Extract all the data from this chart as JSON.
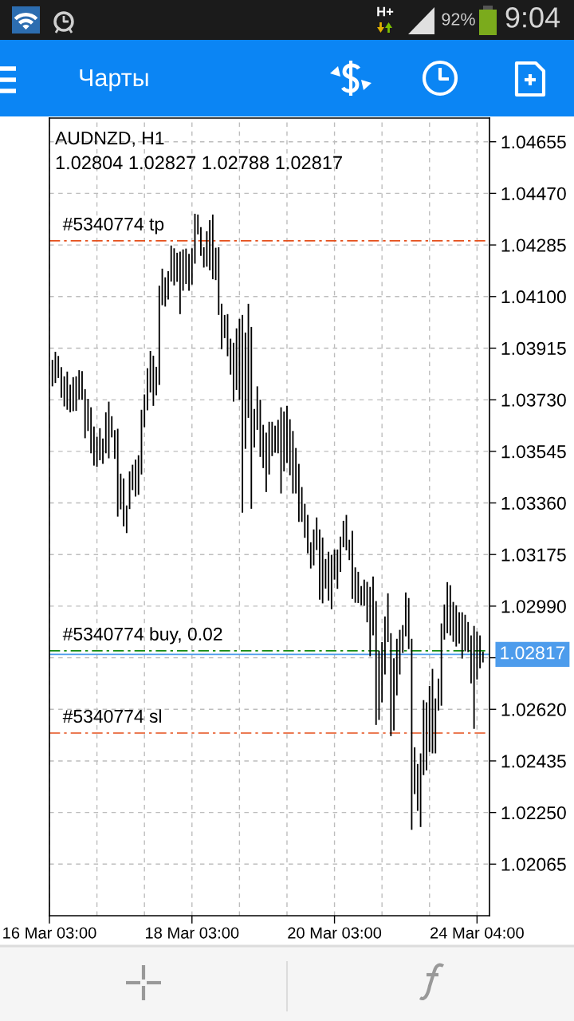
{
  "chart_data": {
    "type": "bar",
    "title": "AUDNZD, H1",
    "subtitle": "1.02804 1.02827 1.02788 1.02817",
    "annotations": [
      "Чарты",
      "H+",
      "92%",
      "9:04"
    ],
    "categories": [
      "16 Mar 03:00",
      null,
      null,
      null,
      null,
      null,
      null,
      null,
      null,
      null,
      null,
      null,
      null,
      null,
      null,
      null,
      null,
      null,
      null,
      null,
      null,
      null,
      null,
      null,
      null,
      null,
      null,
      null,
      null,
      null,
      null,
      null,
      null,
      null,
      null,
      null,
      null,
      null,
      null,
      null,
      null,
      null,
      null,
      null,
      null,
      null,
      null,
      null,
      "18 Mar 03:00",
      null,
      null,
      null,
      null,
      null,
      null,
      null,
      null,
      null,
      null,
      null,
      null,
      null,
      null,
      null,
      null,
      null,
      null,
      null,
      null,
      null,
      null,
      null,
      null,
      null,
      null,
      null,
      null,
      null,
      null,
      null,
      null,
      null,
      null,
      null,
      null,
      null,
      null,
      null,
      null,
      null,
      null,
      null,
      null,
      null,
      null,
      null,
      "20 Mar 03:00",
      null,
      null,
      null,
      null,
      null,
      null,
      null,
      null,
      null,
      null,
      null,
      null,
      null,
      null,
      null,
      null,
      null,
      null,
      null,
      null,
      null,
      null,
      null,
      null,
      null,
      null,
      null,
      null,
      null,
      null,
      null,
      null,
      null,
      null,
      null,
      null,
      null,
      null,
      null,
      null,
      null,
      null,
      null,
      null,
      null,
      null,
      null,
      "24 Mar 04:00",
      null,
      null
    ],
    "base": [
      null,
      1.03778,
      1.0379,
      1.03808,
      1.03737,
      1.03706,
      1.03694,
      1.03685,
      1.03689,
      1.0369,
      1.03731,
      1.0373,
      1.03592,
      1.03618,
      1.03538,
      1.03494,
      1.03489,
      1.03513,
      1.035,
      1.03538,
      1.0352,
      1.03595,
      1.03518,
      1.03311,
      1.03337,
      1.03276,
      1.03252,
      1.03338,
      1.03406,
      1.03383,
      1.03389,
      1.03462,
      1.03632,
      1.03692,
      1.03756,
      1.03708,
      1.03746,
      1.03783,
      1.04069,
      1.04064,
      1.04089,
      1.04154,
      1.0414,
      1.04153,
      1.04037,
      1.04121,
      1.04145,
      1.04121,
      1.04143,
      1.04218,
      1.04323,
      1.04246,
      1.04204,
      1.04207,
      1.04194,
      1.04162,
      1.04159,
      1.04034,
      1.03911,
      1.03951,
      1.03886,
      1.0382,
      1.03723,
      1.03765,
      1.0373,
      1.03325,
      1.03554,
      1.03665,
      1.03339,
      1.03559,
      1.03622,
      1.03525,
      1.03485,
      1.03399,
      1.03462,
      1.03528,
      1.0354,
      1.03538,
      1.03394,
      1.03473,
      1.03504,
      1.03459,
      1.03394,
      1.03394,
      1.03292,
      1.03292,
      1.03235,
      1.03179,
      1.03125,
      1.03136,
      1.03191,
      1.03013,
      1.03,
      1.03053,
      1.0301,
      1.02979,
      1.03085,
      1.03052,
      1.03113,
      1.03201,
      1.0319,
      1.03155,
      1.03016,
      1.03002,
      1.03001,
      1.02993,
      1.02991,
      1.02932,
      1.0281,
      1.02885,
      1.02564,
      1.02582,
      1.02645,
      1.02745,
      1.02861,
      1.02524,
      1.02544,
      1.0267,
      1.02745,
      1.02822,
      1.02882,
      1.02836,
      1.02188,
      1.02316,
      1.02256,
      1.02198,
      1.02384,
      1.02401,
      1.02467,
      1.02462,
      1.02462,
      1.02616,
      1.02633,
      1.0287,
      1.02893,
      1.02885,
      1.02862,
      1.02845,
      1.02856,
      1.02802,
      1.02828,
      1.02825,
      1.02713,
      1.0255,
      1.02727,
      1.02767,
      1.02788
    ],
    "values": [
      null,
      0.00095,
      0.00112,
      0.00079,
      0.0011,
      0.00108,
      0.00137,
      0.00099,
      0.00122,
      0.00124,
      0.00105,
      0.00103,
      0.00176,
      0.00115,
      0.00165,
      0.0014,
      0.00108,
      0.00115,
      0.00091,
      0.00147,
      0.00203,
      0.00076,
      0.00103,
      0.00315,
      0.00128,
      0.00172,
      0.00099,
      0.00135,
      0.00091,
      0.00132,
      0.00142,
      0.00232,
      0.00117,
      0.00151,
      0.00149,
      0.0018,
      0.00102,
      0.00356,
      0.00131,
      0.00105,
      0.00102,
      0.00129,
      0.00133,
      0.00104,
      0.00224,
      0.00148,
      0.00127,
      0.00132,
      0.0013,
      0.00179,
      0.00071,
      0.00103,
      0.00073,
      0.00127,
      0.0018,
      0.00232,
      0.00116,
      0.00243,
      0.00163,
      0.00083,
      0.00151,
      0.00129,
      0.00211,
      0.00221,
      0.0029,
      0.00709,
      0.00417,
      0.00409,
      0.00652,
      0.00138,
      0.00156,
      0.00205,
      0.00155,
      0.00213,
      0.00189,
      0.00123,
      0.00097,
      0.0012,
      0.00309,
      0.00215,
      0.00204,
      0.00201,
      0.00224,
      0.00163,
      0.00208,
      0.00125,
      0.00122,
      0.00138,
      0.00094,
      0.00129,
      0.00117,
      0.00252,
      0.00236,
      0.00106,
      0.00175,
      0.00195,
      0.00108,
      0.00141,
      0.00126,
      0.00095,
      0.00127,
      0.00073,
      0.00244,
      0.00127,
      0.00112,
      0.00069,
      0.00094,
      0.00145,
      0.00249,
      0.00211,
      0.00444,
      0.00248,
      0.00216,
      0.00208,
      0.00175,
      0.00369,
      0.00259,
      0.00203,
      0.0016,
      0.001,
      0.00157,
      0.00183,
      0.00685,
      0.00168,
      0.00168,
      0.00264,
      0.00269,
      0.00244,
      0.00237,
      0.00303,
      0.00197,
      0.00114,
      0.00295,
      0.00126,
      0.00183,
      0.0018,
      0.00143,
      0.00148,
      0.00112,
      0.00166,
      0.00131,
      0.00108,
      0.00172,
      0.00369,
      0.00172,
      0.00118,
      0.00039
    ],
    "color": "#000000",
    "ylim": [
      1.0188,
      1.0474
    ],
    "yticks": [
      1.02065,
      {
        "value": 1.0225,
        "label": "1.02250"
      },
      1.02435,
      {
        "value": 1.0262,
        "label": "1.02620"
      },
      {
        "value": 1.02805,
        "label": null
      },
      {
        "value": 1.0299,
        "label": "1.02990"
      },
      1.03175,
      {
        "value": 1.0336,
        "label": "1.03360"
      },
      1.03545,
      {
        "value": 1.0373,
        "label": "1.03730"
      },
      1.03915,
      {
        "value": 1.041,
        "label": "1.04100"
      },
      1.04285,
      {
        "value": 1.0447,
        "label": "1.04470"
      },
      1.04655
    ],
    "grid": true,
    "ref_lines": [
      {
        "axis": "y",
        "value": 1.043,
        "label": "#5340774 tp",
        "color": "#e5501c",
        "line_style": "dashdot"
      },
      {
        "axis": "y",
        "value": 1.0283,
        "label": "#5340774 buy, 0.02",
        "color": "#138a13",
        "line_style": "dashdot"
      },
      {
        "axis": "y",
        "value": 1.02535,
        "label": "#5340774 sl",
        "color": "#e5501c",
        "line_style": "dashdot"
      },
      {
        "axis": "y",
        "value": 1.02817,
        "label": "1.02817",
        "color": "#4d9cec",
        "line_style": "solid"
      }
    ]
  }
}
